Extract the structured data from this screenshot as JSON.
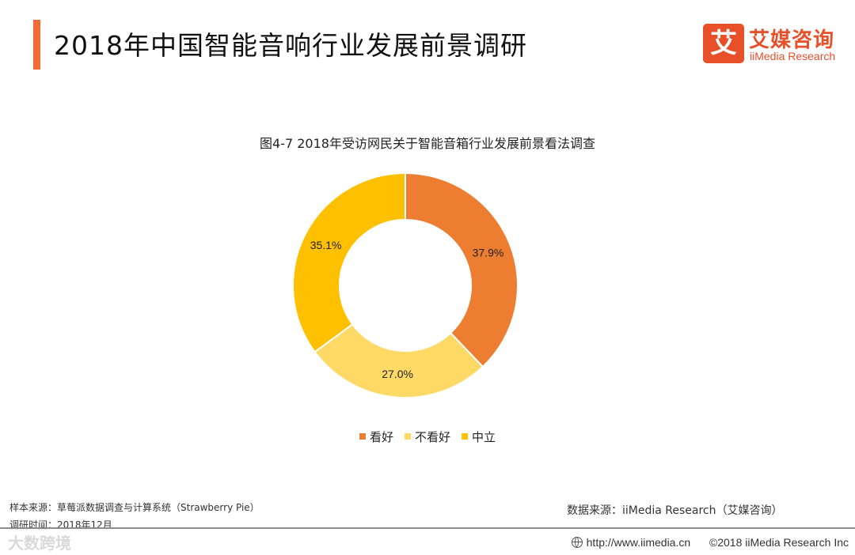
{
  "header": {
    "title": "2018年中国智能音响行业发展前景调研",
    "accent_color": "#f26b34"
  },
  "logo": {
    "mark": "艾",
    "name_cn": "艾媒咨询",
    "name_en": "iiMedia Research",
    "color": "#e8502a"
  },
  "chart_data": {
    "type": "pie",
    "donut": true,
    "title": "图4-7 2018年受访网民关于智能音箱行业发展前景看法调查",
    "categories": [
      "看好",
      "不看好",
      "中立"
    ],
    "values": [
      37.9,
      27.0,
      35.1
    ],
    "labels": [
      "37.9%",
      "27.0%",
      "35.1%"
    ],
    "colors": [
      "#ed7d31",
      "#ffd966",
      "#ffc000"
    ],
    "legend_position": "bottom"
  },
  "source": {
    "sample_line": "样本来源：草莓派数据调查与计算系统（Strawberry Pie）",
    "time_line": "调研时间：2018年12月",
    "data_source": "数据来源：iiMedia Research（艾媒咨询）"
  },
  "footer": {
    "url": "http://www.iimedia.cn",
    "copyright": "©2018  iiMedia Research Inc"
  },
  "watermark": {
    "text": "大数跨境"
  }
}
